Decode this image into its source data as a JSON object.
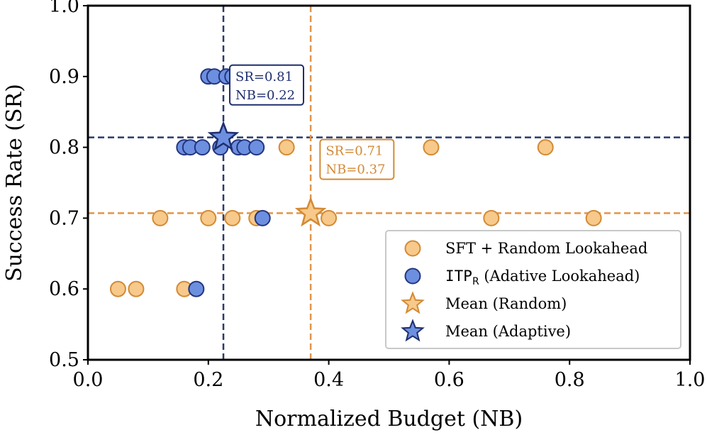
{
  "chart_data": {
    "type": "scatter",
    "xlabel": "Normalized Budget (NB)",
    "ylabel": "Success Rate (SR)",
    "xlim": [
      0.0,
      1.0
    ],
    "ylim": [
      0.5,
      1.0
    ],
    "xticks": [
      "0.0",
      "0.2",
      "0.4",
      "0.6",
      "0.8",
      "1.0"
    ],
    "yticks": [
      "0.5",
      "0.6",
      "0.7",
      "0.8",
      "0.9",
      "1.0"
    ],
    "grid": false,
    "legend_position": "lower-right",
    "series": [
      {
        "name": "SFT + Random Lookahead",
        "marker": "circle",
        "color": "#f7c98a",
        "edge_color": "#d38a35",
        "points": [
          {
            "x": 0.05,
            "y": 0.6
          },
          {
            "x": 0.08,
            "y": 0.6
          },
          {
            "x": 0.16,
            "y": 0.6
          },
          {
            "x": 0.12,
            "y": 0.7
          },
          {
            "x": 0.2,
            "y": 0.7
          },
          {
            "x": 0.24,
            "y": 0.7
          },
          {
            "x": 0.28,
            "y": 0.7
          },
          {
            "x": 0.4,
            "y": 0.7
          },
          {
            "x": 0.67,
            "y": 0.7
          },
          {
            "x": 0.84,
            "y": 0.7
          },
          {
            "x": 0.33,
            "y": 0.8
          },
          {
            "x": 0.48,
            "y": 0.8
          },
          {
            "x": 0.57,
            "y": 0.8
          },
          {
            "x": 0.76,
            "y": 0.8
          }
        ]
      },
      {
        "name_prefix": "ITP",
        "name_subscript": "R",
        "name_suffix": " (Adative Lookahead)",
        "marker": "circle",
        "color": "#6d8fe0",
        "edge_color": "#23357f",
        "points": [
          {
            "x": 0.18,
            "y": 0.6
          },
          {
            "x": 0.29,
            "y": 0.7
          },
          {
            "x": 0.16,
            "y": 0.8
          },
          {
            "x": 0.17,
            "y": 0.8
          },
          {
            "x": 0.19,
            "y": 0.8
          },
          {
            "x": 0.22,
            "y": 0.8
          },
          {
            "x": 0.25,
            "y": 0.8
          },
          {
            "x": 0.26,
            "y": 0.8
          },
          {
            "x": 0.28,
            "y": 0.8
          },
          {
            "x": 0.2,
            "y": 0.9
          },
          {
            "x": 0.21,
            "y": 0.9
          },
          {
            "x": 0.23,
            "y": 0.9
          },
          {
            "x": 0.24,
            "y": 0.9
          },
          {
            "x": 0.26,
            "y": 0.9
          }
        ]
      },
      {
        "name": "Mean (Random)",
        "marker": "star",
        "color": "#f7c98a",
        "edge_color": "#d38a35",
        "points": [
          {
            "x": 0.37,
            "y": 0.707
          }
        ]
      },
      {
        "name": "Mean (Adaptive)",
        "marker": "star",
        "color": "#6d8fe0",
        "edge_color": "#1f2f6e",
        "points": [
          {
            "x": 0.225,
            "y": 0.814
          }
        ]
      }
    ],
    "reference_lines": [
      {
        "orientation": "vertical",
        "value": 0.225,
        "color": "#2b3a6b"
      },
      {
        "orientation": "horizontal",
        "value": 0.814,
        "color": "#2b3a6b"
      },
      {
        "orientation": "vertical",
        "value": 0.37,
        "color": "#e0954a"
      },
      {
        "orientation": "horizontal",
        "value": 0.707,
        "color": "#e0954a"
      }
    ],
    "annotations": [
      {
        "line1": "SR=0.81",
        "line2": "NB=0.22",
        "color": "#1f2f6e",
        "anchor_x": 0.245,
        "anchor_y": 0.89
      },
      {
        "line1": "SR=0.71",
        "line2": "NB=0.37",
        "color": "#d38a35",
        "anchor_x": 0.395,
        "anchor_y": 0.785
      }
    ]
  }
}
